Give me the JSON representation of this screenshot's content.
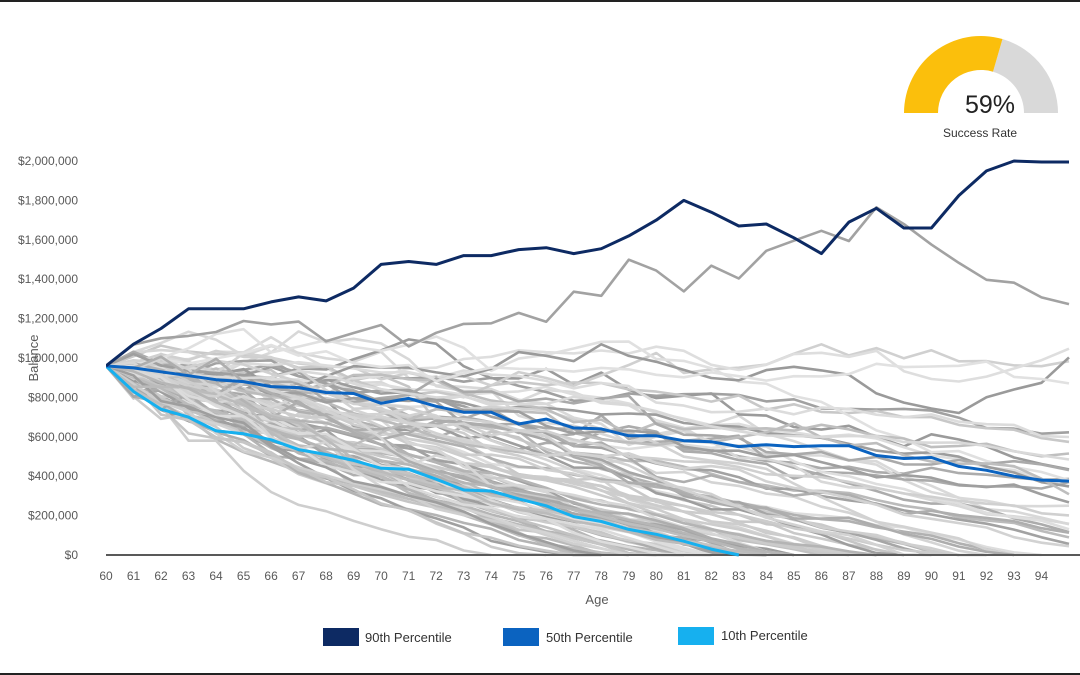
{
  "chart_data": {
    "type": "line",
    "xlabel": "Age",
    "ylabel": "Balance",
    "x": [
      60,
      61,
      62,
      63,
      64,
      65,
      66,
      67,
      68,
      69,
      70,
      71,
      72,
      73,
      74,
      75,
      76,
      77,
      78,
      79,
      80,
      81,
      82,
      83,
      84,
      85,
      86,
      87,
      88,
      89,
      90,
      91,
      92,
      93,
      94,
      95
    ],
    "xlim": [
      60,
      95
    ],
    "ylim": [
      0,
      2000000
    ],
    "y_ticks": [
      0,
      200000,
      400000,
      600000,
      800000,
      1000000,
      1200000,
      1400000,
      1600000,
      1800000,
      2000000
    ],
    "y_tick_labels": [
      "$0",
      "$200,000",
      "$400,000",
      "$600,000",
      "$800,000",
      "$1,000,000",
      "$1,200,000",
      "$1,400,000",
      "$1,600,000",
      "$1,800,000",
      "$2,000,000"
    ],
    "x_tick_labels": [
      "60",
      "61",
      "62",
      "63",
      "64",
      "65",
      "66",
      "67",
      "68",
      "69",
      "70",
      "71",
      "72",
      "73",
      "74",
      "75",
      "76",
      "77",
      "78",
      "79",
      "80",
      "81",
      "82",
      "83",
      "84",
      "85",
      "86",
      "87",
      "88",
      "89",
      "90",
      "91",
      "92",
      "93",
      "94"
    ],
    "grid": false,
    "legend_position": "bottom",
    "series": [
      {
        "name": "90th Percentile",
        "color": "#0d2a63",
        "values": [
          960000,
          1070000,
          1150000,
          1250000,
          1250000,
          1250000,
          1285000,
          1310000,
          1290000,
          1355000,
          1475000,
          1490000,
          1475000,
          1520000,
          1520000,
          1550000,
          1560000,
          1530000,
          1555000,
          1620000,
          1700000,
          1800000,
          1740000,
          1670000,
          1680000,
          1610000,
          1530000,
          1690000,
          1760000,
          1660000,
          1660000,
          1825000,
          1950000,
          2000000,
          1995000,
          1995000
        ]
      },
      {
        "name": "50th Percentile",
        "color": "#0b63c0",
        "values": [
          960000,
          950000,
          930000,
          910000,
          890000,
          880000,
          855000,
          850000,
          825000,
          820000,
          770000,
          795000,
          755000,
          725000,
          725000,
          665000,
          690000,
          645000,
          640000,
          605000,
          605000,
          580000,
          575000,
          550000,
          560000,
          550000,
          555000,
          555000,
          505000,
          490000,
          495000,
          450000,
          430000,
          400000,
          380000,
          375000
        ]
      },
      {
        "name": "10th Percentile",
        "color": "#16b0ef",
        "values": [
          960000,
          830000,
          740000,
          700000,
          630000,
          615000,
          585000,
          535000,
          510000,
          480000,
          440000,
          435000,
          385000,
          330000,
          325000,
          285000,
          250000,
          195000,
          170000,
          130000,
          105000,
          70000,
          30000,
          0,
          null,
          null,
          null,
          null,
          null,
          null,
          null,
          null,
          null,
          null,
          null,
          null
        ]
      }
    ]
  },
  "gauge": {
    "value_label": "59%",
    "value": 0.59,
    "label": "Success Rate",
    "fill_color": "#fbbf0c",
    "track_color": "#d9d9d9"
  },
  "background_paths": {
    "color_range": [
      "#9a9a9a",
      "#dddddd"
    ]
  }
}
